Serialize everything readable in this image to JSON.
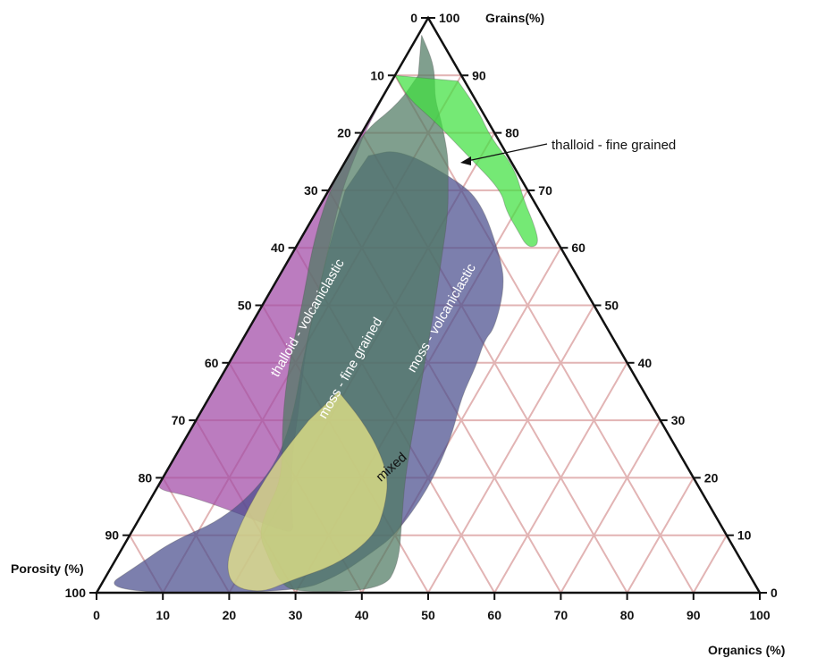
{
  "chart_data": {
    "type": "ternary",
    "axes": {
      "grains": {
        "label": "Grains(%)",
        "ticks": [
          "0",
          "10",
          "20",
          "30",
          "40",
          "50",
          "60",
          "70",
          "80",
          "90",
          "100"
        ]
      },
      "porosity": {
        "label": "Porosity (%)",
        "ticks": [
          "0",
          "10",
          "20",
          "30",
          "40",
          "50",
          "60",
          "70",
          "80",
          "90",
          "100"
        ]
      },
      "organics": {
        "label": "Organics (%)",
        "ticks": [
          "0",
          "10",
          "20",
          "30",
          "40",
          "50",
          "60",
          "70",
          "80",
          "90",
          "100"
        ]
      }
    },
    "grid": true,
    "regions": [
      {
        "name": "thalloid - volcaniclastic",
        "color": "#a14aa6",
        "points": [
          [
            96.0,
            4.0,
            0.0
          ],
          [
            82.0,
            17.8,
            0.2
          ],
          [
            76.0,
            23.0,
            1.0
          ],
          [
            70.0,
            28.0,
            2.0
          ],
          [
            60.0,
            35.0,
            5.0
          ],
          [
            50.0,
            42.0,
            8.0
          ],
          [
            42.0,
            47.5,
            10.5
          ],
          [
            32.0,
            53.5,
            14.5
          ],
          [
            24.0,
            58.5,
            17.5
          ],
          [
            18.0,
            61.6,
            20.4
          ],
          [
            13.0,
            64.0,
            23.0
          ],
          [
            10.5,
            65.0,
            24.5
          ],
          [
            11.0,
            67.0,
            22.0
          ],
          [
            14.0,
            72.0,
            14.0
          ],
          [
            17.0,
            78.0,
            5.0
          ],
          [
            18.0,
            82.0,
            0.0
          ],
          [
            20.0,
            80.0,
            0.0
          ],
          [
            30.0,
            70.0,
            0.0
          ],
          [
            40.0,
            60.0,
            0.0
          ],
          [
            50.0,
            50.0,
            0.0
          ],
          [
            60.0,
            40.0,
            0.0
          ],
          [
            70.0,
            30.0,
            0.0
          ],
          [
            80.0,
            20.0,
            0.0
          ],
          [
            90.0,
            10.0,
            0.0
          ]
        ]
      },
      {
        "name": "moss - volcaniclastic",
        "color": "#4a4d8e",
        "points": [
          [
            76.0,
            21.0,
            3.0
          ],
          [
            77.2,
            15.8,
            7.0
          ],
          [
            72.0,
            10.0,
            18.0
          ],
          [
            68.0,
            8.0,
            24.0
          ],
          [
            58.0,
            10.0,
            32.0
          ],
          [
            53.0,
            12.0,
            35.0
          ],
          [
            46.0,
            17.0,
            37.0
          ],
          [
            44.0,
            19.5,
            36.5
          ],
          [
            39.5,
            23.0,
            37.5
          ],
          [
            34.0,
            28.0,
            38.0
          ],
          [
            27.0,
            33.0,
            40.0
          ],
          [
            18.0,
            41.0,
            41.0
          ],
          [
            10.0,
            50.0,
            40.0
          ],
          [
            7.0,
            55.0,
            38.0
          ],
          [
            3.0,
            62.0,
            35.0
          ],
          [
            0.0,
            70.0,
            30.0
          ],
          [
            0.0,
            100.0,
            0.0
          ],
          [
            5.0,
            91.0,
            4.0
          ],
          [
            9.0,
            84.0,
            7.0
          ],
          [
            13.0,
            74.0,
            13.0
          ],
          [
            21.0,
            63.0,
            16.0
          ],
          [
            30.0,
            55.5,
            14.5
          ],
          [
            40.0,
            49.0,
            11.0
          ],
          [
            50.0,
            42.0,
            8.0
          ],
          [
            60.0,
            35.0,
            5.0
          ],
          [
            70.0,
            27.5,
            2.5
          ]
        ]
      },
      {
        "name": "moss - fine grained",
        "color": "#4f7a63",
        "points": [
          [
            97.0,
            2.5,
            0.5
          ],
          [
            93.0,
            3.0,
            4.0
          ],
          [
            90.0,
            4.0,
            6.0
          ],
          [
            86.0,
            6.0,
            8.0
          ],
          [
            82.0,
            7.0,
            11.0
          ],
          [
            76.0,
            9.0,
            15.0
          ],
          [
            72.0,
            11.0,
            17.0
          ],
          [
            66.0,
            14.0,
            20.0
          ],
          [
            58.0,
            19.0,
            23.0
          ],
          [
            50.0,
            24.0,
            26.0
          ],
          [
            40.0,
            30.5,
            29.5
          ],
          [
            30.0,
            37.0,
            33.0
          ],
          [
            20.0,
            43.5,
            36.5
          ],
          [
            12.0,
            48.0,
            40.0
          ],
          [
            5.0,
            52.0,
            43.0
          ],
          [
            0.5,
            56.5,
            43.0
          ],
          [
            0.0,
            70.0,
            30.0
          ],
          [
            2.0,
            71.5,
            26.5
          ],
          [
            6.0,
            71.0,
            23.0
          ],
          [
            10.0,
            70.5,
            19.5
          ],
          [
            14.0,
            67.5,
            18.5
          ],
          [
            20.0,
            62.0,
            18.0
          ],
          [
            30.0,
            57.0,
            13.0
          ],
          [
            40.0,
            51.0,
            9.0
          ],
          [
            50.0,
            44.0,
            6.0
          ],
          [
            60.0,
            37.5,
            2.5
          ],
          [
            70.0,
            30.0,
            0.0
          ],
          [
            80.0,
            20.0,
            0.0
          ],
          [
            85.0,
            12.0,
            3.0
          ],
          [
            90.0,
            6.5,
            3.5
          ]
        ]
      },
      {
        "name": "thalloid - fine grained",
        "color": "#40e040",
        "points": [
          [
            90.0,
            10.0,
            0.0
          ],
          [
            86.0,
            10.0,
            4.0
          ],
          [
            82.0,
            8.0,
            10.0
          ],
          [
            76.0,
            6.0,
            18.0
          ],
          [
            70.0,
            4.0,
            26.0
          ],
          [
            66.5,
            5.0,
            28.5
          ],
          [
            63.0,
            5.0,
            32.0
          ],
          [
            60.0,
            5.0,
            35.0
          ],
          [
            60.5,
            3.0,
            36.5
          ],
          [
            64.0,
            2.0,
            34.0
          ],
          [
            68.0,
            1.5,
            30.5
          ],
          [
            74.0,
            0.0,
            26.0
          ],
          [
            79.0,
            1.0,
            20.0
          ],
          [
            84.0,
            0.5,
            15.5
          ],
          [
            89.0,
            1.0,
            10.0
          ]
        ]
      },
      {
        "name": "mixed",
        "color": "#eeec88",
        "points": [
          [
            35.0,
            46.0,
            19.0
          ],
          [
            30.0,
            45.0,
            25.0
          ],
          [
            25.0,
            45.0,
            30.0
          ],
          [
            20.0,
            46.0,
            34.0
          ],
          [
            15.0,
            49.0,
            36.0
          ],
          [
            10.0,
            53.0,
            37.0
          ],
          [
            5.0,
            61.0,
            34.0
          ],
          [
            2.0,
            70.0,
            28.0
          ],
          [
            0.0,
            75.0,
            25.0
          ],
          [
            1.0,
            79.0,
            20.0
          ],
          [
            5.0,
            78.0,
            17.0
          ],
          [
            10.0,
            74.0,
            16.0
          ],
          [
            15.0,
            69.5,
            15.5
          ],
          [
            20.0,
            64.5,
            15.5
          ],
          [
            25.0,
            59.0,
            16.0
          ],
          [
            30.0,
            53.0,
            17.0
          ]
        ]
      }
    ],
    "labels": {
      "thalloid_volcaniclastic": "thalloid - volcaniclastic",
      "moss_fine_grained": "moss - fine grained",
      "moss_volcaniclastic": "moss - volcaniclastic",
      "mixed": "mixed",
      "thalloid_fine_grained": "thalloid - fine grained"
    }
  }
}
